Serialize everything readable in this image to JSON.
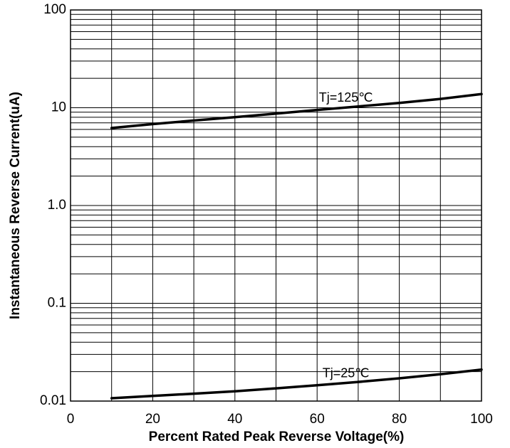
{
  "chart_data": {
    "type": "line",
    "xlabel": "Percent Rated Peak Reverse Voltage(%)",
    "ylabel": "Instantaneous Reverse Current(uA)",
    "xlim": [
      0,
      100
    ],
    "ylim": [
      0.01,
      100
    ],
    "y_scale": "log",
    "grid": true,
    "x_ticks": [
      0,
      20,
      40,
      60,
      80,
      100
    ],
    "x_tick_labels": [
      "0",
      "20",
      "40",
      "60",
      "80",
      "100"
    ],
    "y_ticks": [
      0.01,
      0.1,
      1,
      10,
      100
    ],
    "y_tick_labels": [
      "0.01",
      "0.1",
      "1.0",
      "10",
      "100"
    ],
    "series": [
      {
        "name": "Tj=125℃",
        "x": [
          10,
          20,
          30,
          40,
          50,
          60,
          70,
          80,
          90,
          100
        ],
        "y": [
          6.2,
          6.8,
          7.4,
          8.0,
          8.7,
          9.5,
          10.3,
          11.2,
          12.3,
          13.8
        ]
      },
      {
        "name": "Tj=25℃",
        "x": [
          10,
          20,
          30,
          40,
          50,
          60,
          70,
          80,
          90,
          100
        ],
        "y": [
          0.0107,
          0.0113,
          0.0119,
          0.0126,
          0.0135,
          0.0145,
          0.0157,
          0.0171,
          0.0188,
          0.021
        ]
      }
    ]
  }
}
